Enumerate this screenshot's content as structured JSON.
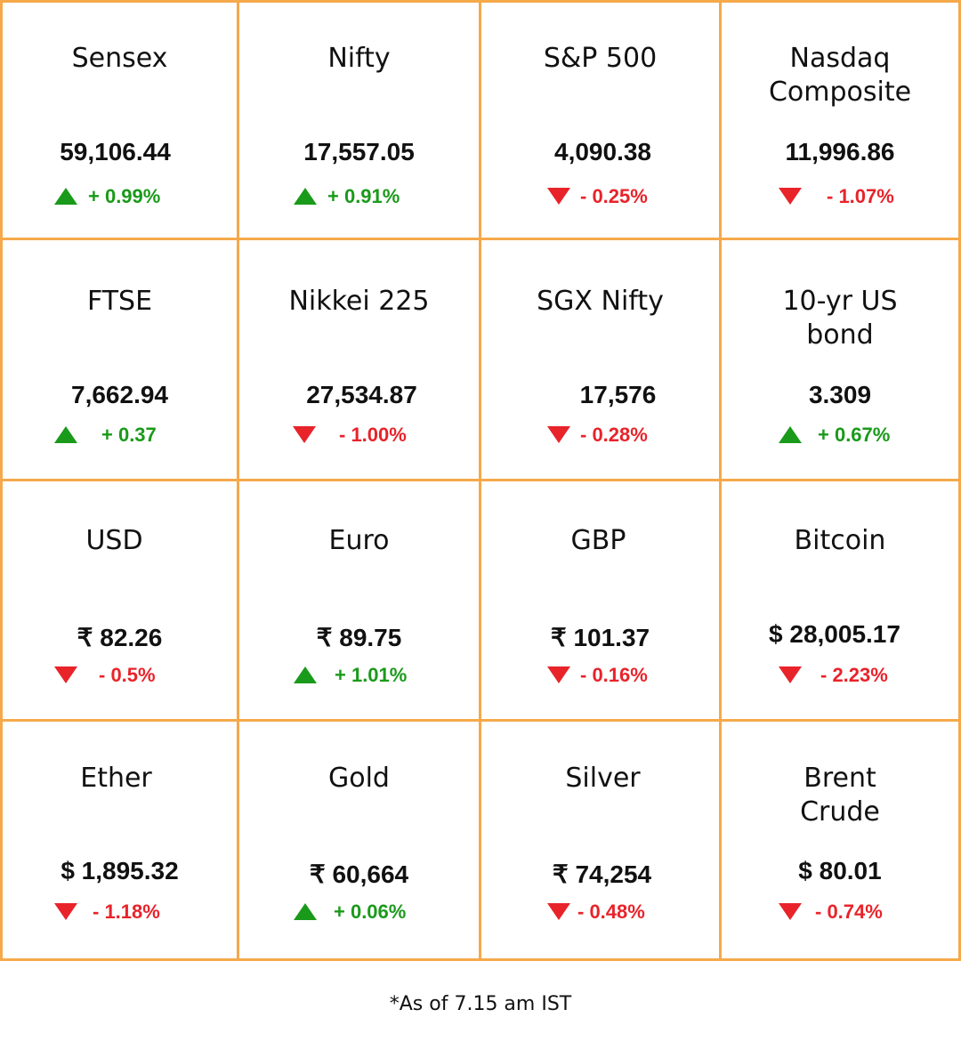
{
  "colors": {
    "border": "#f5a94a",
    "up": "#1a9a1a",
    "down": "#e8232a",
    "text": "#111111"
  },
  "tiles": [
    {
      "name": "Sensex",
      "value": "59,106.44",
      "direction": "up",
      "change": "+ 0.99%"
    },
    {
      "name": "Nifty",
      "value": "17,557.05",
      "direction": "up",
      "change": "+ 0.91%"
    },
    {
      "name": "S&P 500",
      "value": "4,090.38",
      "direction": "down",
      "change": "- 0.25%"
    },
    {
      "name": "Nasdaq\nComposite",
      "value": "11,996.86",
      "direction": "down",
      "change": "- 1.07%"
    },
    {
      "name": "FTSE",
      "value": "7,662.94",
      "direction": "up",
      "change": "+ 0.37"
    },
    {
      "name": "Nikkei 225",
      "value": "27,534.87",
      "direction": "down",
      "change": "- 1.00%"
    },
    {
      "name": "SGX Nifty",
      "value": "17,576",
      "direction": "down",
      "change": "- 0.28%"
    },
    {
      "name": "10-yr US\nbond",
      "value": "3.309",
      "direction": "up",
      "change": "+ 0.67%"
    },
    {
      "name": "USD",
      "value": "₹ 82.26",
      "direction": "down",
      "change": "- 0.5%"
    },
    {
      "name": "Euro",
      "value": "₹ 89.75",
      "direction": "up",
      "change": "+ 1.01%"
    },
    {
      "name": "GBP",
      "value": "₹ 101.37",
      "direction": "down",
      "change": "- 0.16%"
    },
    {
      "name": "Bitcoin",
      "value": "$ 28,005.17",
      "direction": "down",
      "change": "- 2.23%"
    },
    {
      "name": "Ether",
      "value": "$ 1,895.32",
      "direction": "down",
      "change": "- 1.18%"
    },
    {
      "name": "Gold",
      "value": "₹ 60,664",
      "direction": "up",
      "change": "+ 0.06%"
    },
    {
      "name": "Silver",
      "value": "₹ 74,254",
      "direction": "down",
      "change": "- 0.48%"
    },
    {
      "name": "Brent\nCrude",
      "value": "$ 80.01",
      "direction": "down",
      "change": "- 0.74%"
    }
  ],
  "footnote": "*As of 7.15 am IST"
}
